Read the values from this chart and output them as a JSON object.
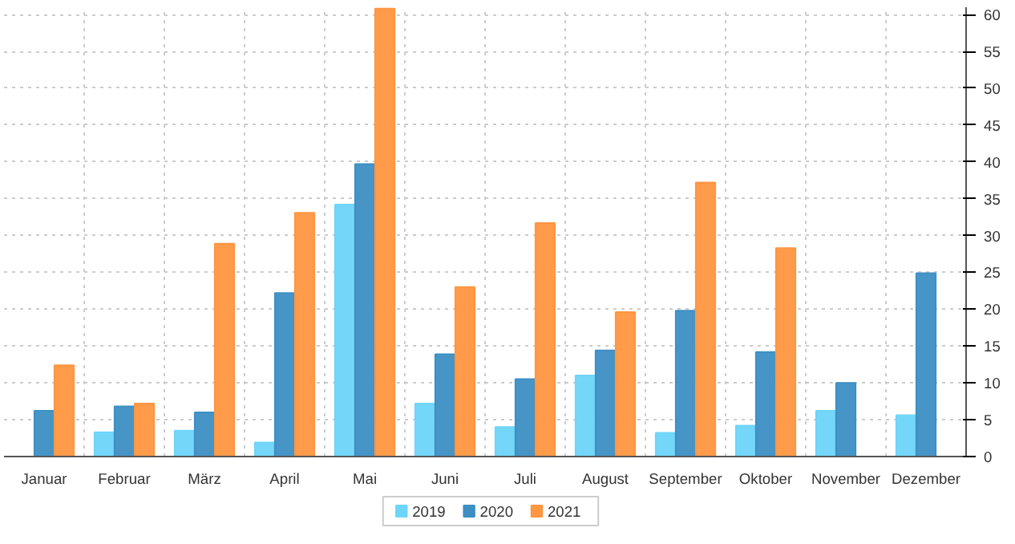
{
  "chart_data": {
    "type": "bar",
    "categories": [
      "Januar",
      "Februar",
      "März",
      "April",
      "Mai",
      "Juni",
      "Juli",
      "August",
      "September",
      "Oktober",
      "November",
      "Dezember"
    ],
    "series": [
      {
        "name": "2019",
        "color": "#6dd5fa",
        "values": [
          null,
          3.3,
          3.5,
          1.9,
          34.2,
          7.2,
          4.0,
          11.0,
          3.2,
          4.2,
          6.2,
          5.6
        ]
      },
      {
        "name": "2020",
        "color": "#3d8fc4",
        "values": [
          6.2,
          6.8,
          6.0,
          22.2,
          39.7,
          13.9,
          10.5,
          14.4,
          19.8,
          14.2,
          10.0,
          24.9
        ]
      },
      {
        "name": "2021",
        "color": "#ff9640",
        "values": [
          12.4,
          7.2,
          28.9,
          33.1,
          60.8,
          23.0,
          31.7,
          19.6,
          37.2,
          28.3,
          null,
          null
        ]
      }
    ],
    "ylim": [
      0,
      61
    ],
    "yticks": [
      0,
      5,
      10,
      15,
      20,
      25,
      30,
      35,
      40,
      45,
      50,
      55,
      60
    ],
    "grid": true,
    "legend": "bottom"
  }
}
